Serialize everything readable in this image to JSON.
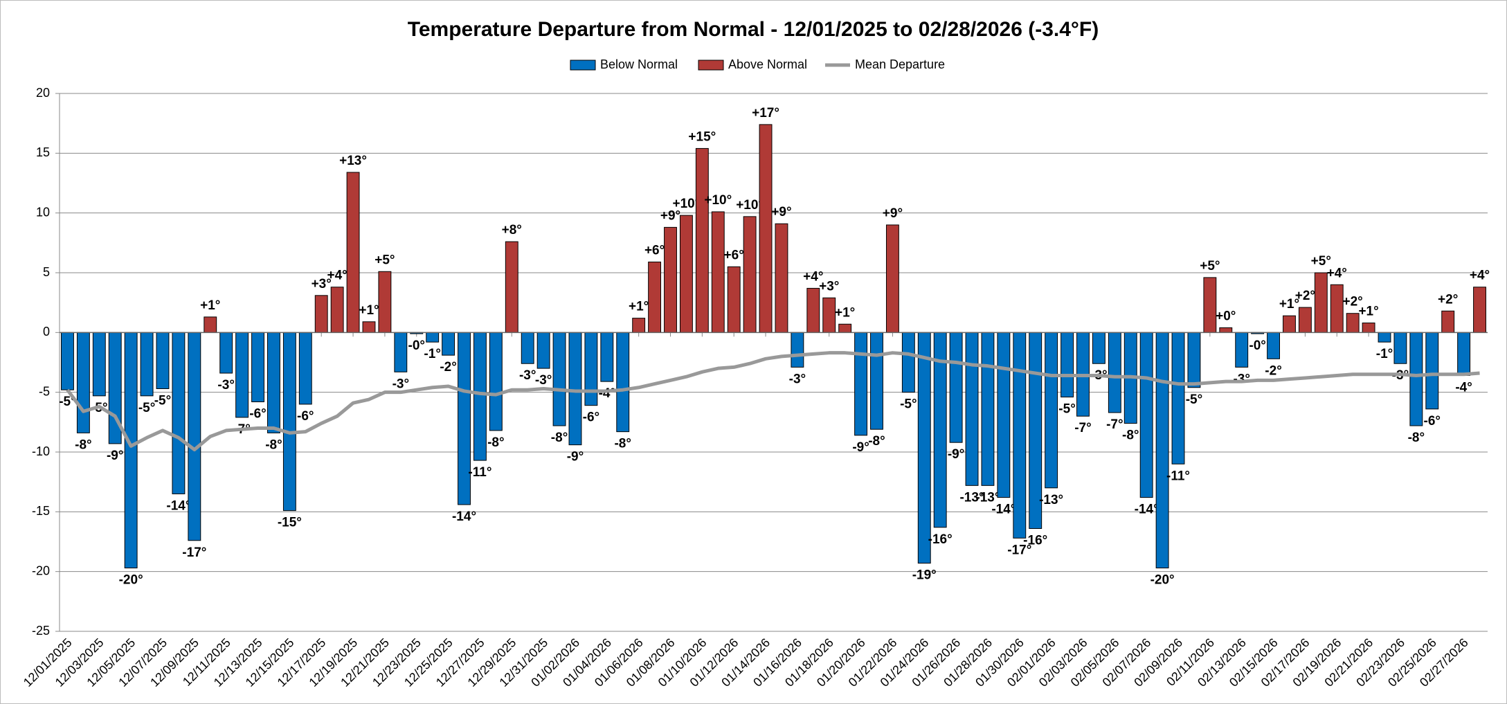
{
  "chart_data": {
    "type": "bar",
    "title": "Temperature Departure from Normal - 12/01/2025 to 02/28/2026 (-3.4°F)",
    "categories": [
      "12/01/2025",
      null,
      "12/03/2025",
      null,
      "12/05/2025",
      null,
      "12/07/2025",
      null,
      "12/09/2025",
      null,
      "12/11/2025",
      null,
      "12/13/2025",
      null,
      "12/15/2025",
      null,
      "12/17/2025",
      null,
      "12/19/2025",
      null,
      "12/21/2025",
      null,
      "12/23/2025",
      null,
      "12/25/2025",
      null,
      "12/27/2025",
      null,
      "12/29/2025",
      null,
      "12/31/2025",
      null,
      "01/02/2026",
      null,
      "01/04/2026",
      null,
      "01/06/2026",
      null,
      "01/08/2026",
      null,
      "01/10/2026",
      null,
      "01/12/2026",
      null,
      "01/14/2026",
      null,
      "01/16/2026",
      null,
      "01/18/2026",
      null,
      "01/20/2026",
      null,
      "01/22/2026",
      null,
      "01/24/2026",
      null,
      "01/26/2026",
      null,
      "01/28/2026",
      null,
      "01/30/2026",
      null,
      "02/01/2026",
      null,
      "02/03/2026",
      null,
      "02/05/2026",
      null,
      "02/07/2026",
      null,
      "02/09/2026",
      null,
      "02/11/2026",
      null,
      "02/13/2026",
      null,
      "02/15/2026",
      null,
      "02/17/2026",
      null,
      "02/19/2026",
      null,
      "02/21/2026",
      null,
      "02/23/2026",
      null,
      "02/25/2026",
      null,
      "02/27/2026",
      null
    ],
    "series": [
      {
        "name": "Below Normal",
        "color": "#0070c0",
        "values": [
          -4.8,
          -8.4,
          -5.3,
          -9.3,
          -19.7,
          -5.3,
          -4.7,
          -13.5,
          -17.4,
          null,
          -3.4,
          -7.1,
          -5.8,
          -8.4,
          -14.9,
          -6.0,
          null,
          null,
          null,
          null,
          null,
          -3.3,
          -0.1,
          -0.8,
          -1.9,
          -14.4,
          -10.7,
          -8.2,
          null,
          -2.6,
          -3.0,
          -7.8,
          -9.4,
          -6.1,
          -4.1,
          -8.3,
          null,
          null,
          null,
          null,
          null,
          null,
          null,
          null,
          null,
          null,
          -2.9,
          null,
          null,
          null,
          -8.6,
          -8.1,
          null,
          -5.0,
          -19.3,
          -16.3,
          -9.2,
          -12.8,
          -12.8,
          -13.8,
          -17.2,
          -16.4,
          -13.0,
          -5.4,
          -7.0,
          -2.6,
          -6.7,
          -7.6,
          -13.8,
          -19.7,
          -11.0,
          -4.6,
          null,
          null,
          -2.9,
          -0.1,
          -2.2,
          null,
          null,
          null,
          null,
          null,
          null,
          -0.8,
          -2.6,
          -7.8,
          -6.4,
          null,
          -3.6,
          null
        ],
        "value_labels": [
          "-5°",
          "-8°",
          "-5°",
          "-9°",
          "-20°",
          "-5°",
          "-5°",
          "-14°",
          "-17°",
          null,
          "-3°",
          "-7°",
          "-6°",
          "-8°",
          "-15°",
          "-6°",
          null,
          null,
          null,
          null,
          null,
          "-3°",
          "-0°",
          "-1°",
          "-2°",
          "-14°",
          "-11°",
          "-8°",
          null,
          "-3°",
          "-3°",
          "-8°",
          "-9°",
          "-6°",
          "-4°",
          "-8°",
          null,
          null,
          null,
          null,
          null,
          null,
          null,
          null,
          null,
          null,
          "-3°",
          null,
          null,
          null,
          "-9°",
          "-8°",
          null,
          "-5°",
          "-19°",
          "-16°",
          "-9°",
          "-13°",
          "-13°",
          "-14°",
          "-17°",
          "-16°",
          "-13°",
          "-5°",
          "-7°",
          "-3°",
          "-7°",
          "-8°",
          "-14°",
          "-20°",
          "-11°",
          "-5°",
          null,
          null,
          "-3°",
          "-0°",
          "-2°",
          null,
          null,
          null,
          null,
          null,
          null,
          "-1°",
          "-3°",
          "-8°",
          "-6°",
          null,
          "-4°",
          null
        ]
      },
      {
        "name": "Above Normal",
        "color": "#b03a36",
        "values": [
          null,
          null,
          null,
          null,
          null,
          null,
          null,
          null,
          null,
          1.3,
          null,
          null,
          null,
          null,
          null,
          null,
          3.1,
          3.8,
          13.4,
          0.9,
          5.1,
          null,
          null,
          null,
          null,
          null,
          null,
          null,
          7.6,
          null,
          null,
          null,
          null,
          null,
          null,
          null,
          1.2,
          5.9,
          8.8,
          9.8,
          15.4,
          10.1,
          5.5,
          9.7,
          17.4,
          9.1,
          null,
          3.7,
          2.9,
          0.7,
          null,
          null,
          9.0,
          null,
          null,
          null,
          null,
          null,
          null,
          null,
          null,
          null,
          null,
          null,
          null,
          null,
          null,
          null,
          null,
          null,
          null,
          null,
          4.6,
          0.4,
          null,
          null,
          null,
          1.4,
          2.1,
          5.0,
          4.0,
          1.6,
          0.8,
          null,
          null,
          null,
          null,
          1.8,
          null,
          3.8
        ],
        "value_labels": [
          null,
          null,
          null,
          null,
          null,
          null,
          null,
          null,
          null,
          "+1°",
          null,
          null,
          null,
          null,
          null,
          null,
          "+3°",
          "+4°",
          "+13°",
          "+1°",
          "+5°",
          null,
          null,
          null,
          null,
          null,
          null,
          null,
          "+8°",
          null,
          null,
          null,
          null,
          null,
          null,
          null,
          "+1°",
          "+6°",
          "+9°",
          "+10°",
          "+15°",
          "+10°",
          "+6°",
          "+10°",
          "+17°",
          "+9°",
          null,
          "+4°",
          "+3°",
          "+1°",
          null,
          null,
          "+9°",
          null,
          null,
          null,
          null,
          null,
          null,
          null,
          null,
          null,
          null,
          null,
          null,
          null,
          null,
          null,
          null,
          null,
          null,
          null,
          "+5°",
          "+0°",
          null,
          null,
          null,
          "+1°",
          "+2°",
          "+5°",
          "+4°",
          "+2°",
          "+1°",
          null,
          null,
          null,
          null,
          "+2°",
          null,
          "+4°"
        ]
      },
      {
        "name": "Mean Departure",
        "color": "#999999",
        "type": "line",
        "values": [
          -4.8,
          -6.6,
          -6.2,
          -7.0,
          -9.5,
          -8.8,
          -8.2,
          -8.8,
          -9.8,
          -8.7,
          -8.2,
          -8.1,
          -8.0,
          -8.0,
          -8.4,
          -8.3,
          -7.6,
          -7.0,
          -5.9,
          -5.6,
          -5.0,
          -5.0,
          -4.8,
          -4.6,
          -4.5,
          -4.9,
          -5.1,
          -5.2,
          -4.8,
          -4.8,
          -4.7,
          -4.8,
          -4.9,
          -4.9,
          -4.9,
          -4.8,
          -4.6,
          -4.3,
          -4.0,
          -3.7,
          -3.3,
          -3.0,
          -2.9,
          -2.6,
          -2.2,
          -2.0,
          -1.9,
          -1.8,
          -1.7,
          -1.7,
          -1.8,
          -1.9,
          -1.7,
          -1.8,
          -2.1,
          -2.4,
          -2.5,
          -2.7,
          -2.8,
          -3.0,
          -3.2,
          -3.4,
          -3.6,
          -3.6,
          -3.6,
          -3.6,
          -3.7,
          -3.7,
          -3.8,
          -4.1,
          -4.3,
          -4.3,
          -4.2,
          -4.1,
          -4.1,
          -4.0,
          -4.0,
          -3.9,
          -3.8,
          -3.7,
          -3.6,
          -3.5,
          -3.5,
          -3.5,
          -3.5,
          -3.6,
          -3.5,
          -3.5,
          -3.5,
          -3.4
        ]
      }
    ],
    "ylim": [
      -25,
      20
    ],
    "yticks": [
      -25,
      -20,
      -15,
      -10,
      -5,
      0,
      5,
      10,
      15,
      20
    ],
    "grid": true,
    "legend": "top"
  }
}
